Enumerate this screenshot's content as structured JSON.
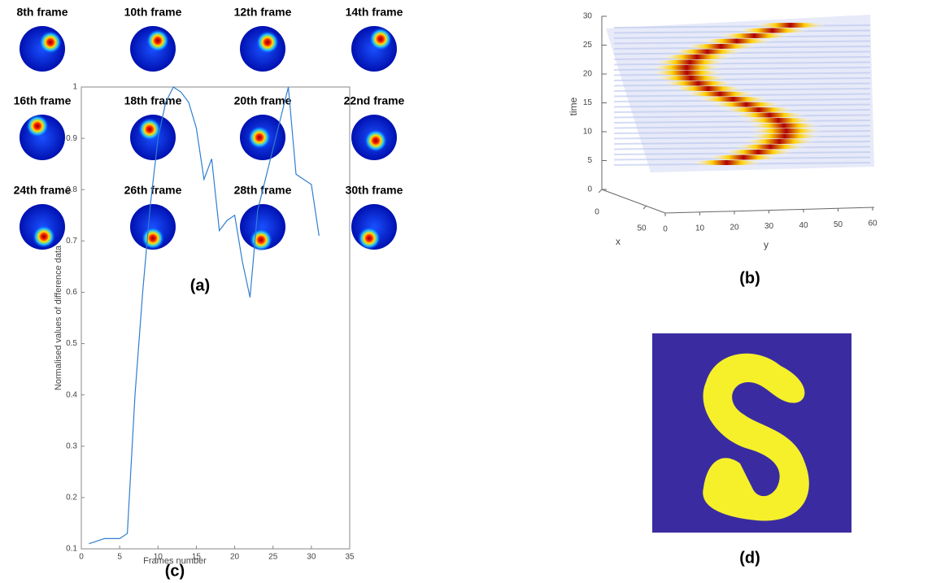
{
  "panels": {
    "a": {
      "label": "(a)",
      "frames": [
        "8th frame",
        "10th frame",
        "12th frame",
        "14th frame",
        "16th frame",
        "18th frame",
        "20th frame",
        "22nd frame",
        "24th frame",
        "26th frame",
        "28th frame",
        "30th frame"
      ]
    },
    "b": {
      "label": "(b)",
      "zlabel": "time",
      "xlabel": "x",
      "ylabel": "y",
      "zlim": [
        0,
        30
      ],
      "zticks": [
        0,
        5,
        10,
        15,
        20,
        25,
        30
      ],
      "xlim": [
        0,
        50
      ],
      "xticks": [
        0,
        50
      ],
      "ylim": [
        0,
        60
      ],
      "yticks": [
        0,
        10,
        20,
        30,
        40,
        50,
        60
      ]
    },
    "d": {
      "label": "(d)"
    }
  },
  "chart_data": {
    "type": "line",
    "label": "(c)",
    "xlabel": "Frames number",
    "ylabel": "Normalised values of difference data",
    "color": "#2f7fd0",
    "x": [
      1,
      2,
      3,
      4,
      5,
      6,
      7,
      8,
      9,
      10,
      11,
      12,
      13,
      14,
      15,
      16,
      17,
      18,
      19,
      20,
      21,
      22,
      23,
      24,
      25,
      26,
      27,
      28,
      29,
      30,
      31
    ],
    "values": [
      0.11,
      0.115,
      0.12,
      0.12,
      0.12,
      0.13,
      0.4,
      0.6,
      0.77,
      0.9,
      0.97,
      1.0,
      0.99,
      0.97,
      0.92,
      0.82,
      0.86,
      0.72,
      0.74,
      0.75,
      0.66,
      0.59,
      0.76,
      0.82,
      0.88,
      0.94,
      1.0,
      0.83,
      0.82,
      0.81,
      0.71
    ],
    "xlim": [
      0,
      35
    ],
    "xticks": [
      0,
      5,
      10,
      15,
      20,
      25,
      30,
      35
    ],
    "ylim": [
      0.1,
      1
    ],
    "yticks": [
      0.1,
      0.2,
      0.3,
      0.4,
      0.5,
      0.6,
      0.7,
      0.8,
      0.9,
      1
    ]
  }
}
